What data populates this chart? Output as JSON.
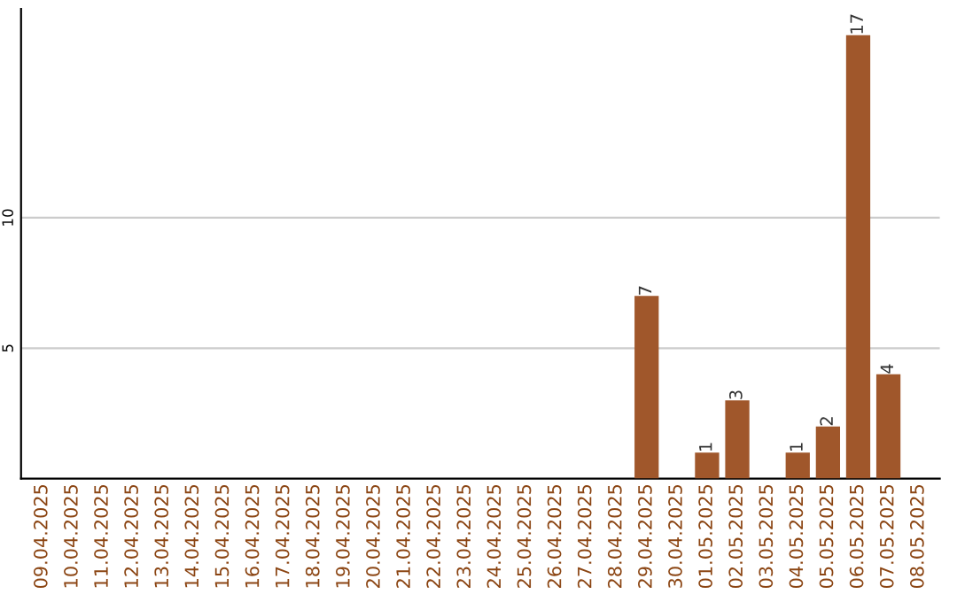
{
  "chart_data": {
    "type": "bar",
    "categories": [
      "09.04.2025",
      "10.04.2025",
      "11.04.2025",
      "12.04.2025",
      "13.04.2025",
      "14.04.2025",
      "15.04.2025",
      "16.04.2025",
      "17.04.2025",
      "18.04.2025",
      "19.04.2025",
      "20.04.2025",
      "21.04.2025",
      "22.04.2025",
      "23.04.2025",
      "24.04.2025",
      "25.04.2025",
      "26.04.2025",
      "27.04.2025",
      "28.04.2025",
      "29.04.2025",
      "30.04.2025",
      "01.05.2025",
      "02.05.2025",
      "03.05.2025",
      "04.05.2025",
      "05.05.2025",
      "06.05.2025",
      "07.05.2025",
      "08.05.2025"
    ],
    "values": [
      0,
      0,
      0,
      0,
      0,
      0,
      0,
      0,
      0,
      0,
      0,
      0,
      0,
      0,
      0,
      0,
      0,
      0,
      0,
      0,
      7,
      0,
      1,
      3,
      0,
      1,
      2,
      17,
      4,
      0
    ],
    "value_labels": [
      null,
      null,
      null,
      null,
      null,
      null,
      null,
      null,
      null,
      null,
      null,
      null,
      null,
      null,
      null,
      null,
      null,
      null,
      null,
      null,
      "7",
      null,
      "1",
      "3",
      null,
      "1",
      "2",
      "17",
      "4",
      null
    ],
    "color": "#a0572b",
    "ylim": [
      0,
      18
    ],
    "yticks": [
      5,
      10
    ],
    "grid": "y"
  }
}
